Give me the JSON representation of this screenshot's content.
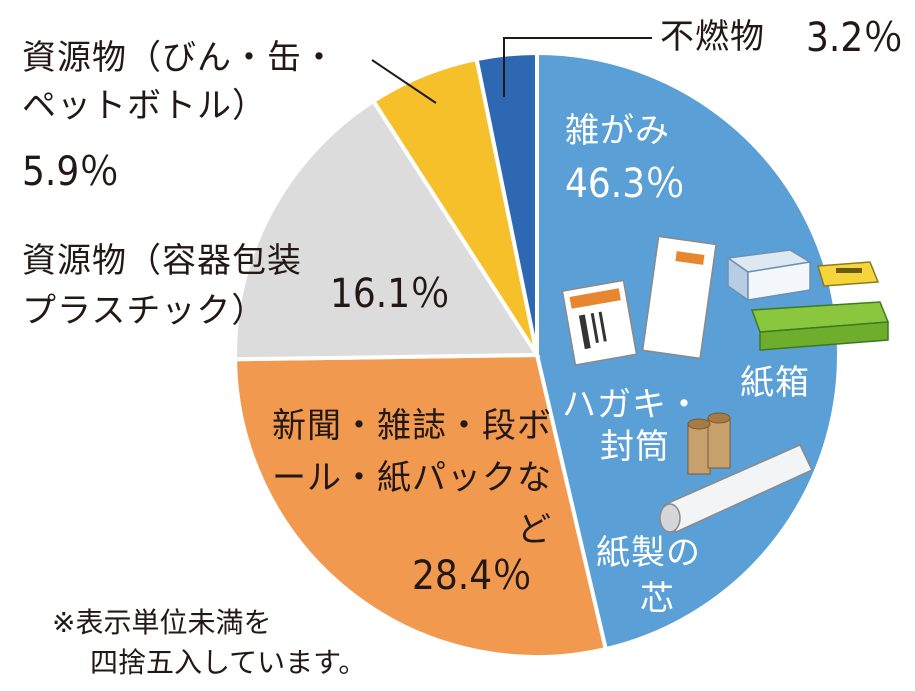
{
  "chart_data": {
    "type": "pie",
    "slices": [
      {
        "label": "雑がみ",
        "value": 46.3,
        "value_label": "46.3％",
        "color": "#5a9fd6"
      },
      {
        "label": "新聞・雑誌・段ボール・紙パックなど",
        "value": 28.4,
        "value_label": "28.4％",
        "color": "#f19a4f"
      },
      {
        "label": "資源物（容器包装プラスチック）",
        "value": 16.1,
        "value_label": "16.1％",
        "color": "#dcdcdc"
      },
      {
        "label": "資源物（びん・缶・ペットボトル）",
        "value": 5.9,
        "value_label": "5.9％",
        "color": "#f6c02b"
      },
      {
        "label": "不燃物",
        "value": 3.2,
        "value_label": "3.2％",
        "color": "#2f68b2"
      }
    ],
    "inner_labels": [
      "ハガキ・",
      "封筒",
      "紙箱",
      "紙製の",
      "芯"
    ],
    "note": [
      "※表示単位未満を",
      "四捨五入しています。"
    ]
  }
}
